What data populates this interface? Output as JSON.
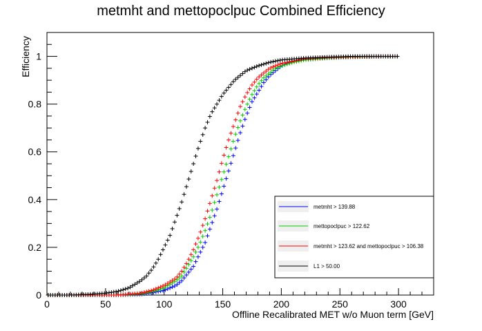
{
  "chart_data": {
    "type": "scatter",
    "title": "metmht and mettopoclpuc Combined Efficiency",
    "xlabel": "Offline Recalibrated MET w/o Muon term [GeV]",
    "ylabel": "Efficiency",
    "xlim": [
      0,
      330
    ],
    "ylim": [
      0,
      1.1
    ],
    "x_ticks": [
      0,
      50,
      100,
      150,
      200,
      250,
      300
    ],
    "y_ticks": [
      0,
      0.2,
      0.4,
      0.6,
      0.8,
      1
    ],
    "x_tick_labels": [
      "0",
      "50",
      "100",
      "150",
      "200",
      "250",
      "300"
    ],
    "y_tick_labels": [
      "0",
      "0.2",
      "0.4",
      "0.6",
      "0.8",
      "1"
    ],
    "grid": false,
    "legend_position": "bottom-right",
    "series": [
      {
        "name": "metmht >  139.88",
        "color": "#0000ff",
        "marker": "cross",
        "points": [
          [
            0,
            0
          ],
          [
            60,
            0
          ],
          [
            80,
            0.003
          ],
          [
            90,
            0.01
          ],
          [
            100,
            0.02
          ],
          [
            110,
            0.04
          ],
          [
            115,
            0.06
          ],
          [
            120,
            0.09
          ],
          [
            125,
            0.12
          ],
          [
            130,
            0.17
          ],
          [
            135,
            0.22
          ],
          [
            140,
            0.29
          ],
          [
            145,
            0.36
          ],
          [
            150,
            0.44
          ],
          [
            155,
            0.52
          ],
          [
            160,
            0.6
          ],
          [
            165,
            0.68
          ],
          [
            170,
            0.75
          ],
          [
            175,
            0.81
          ],
          [
            180,
            0.85
          ],
          [
            185,
            0.89
          ],
          [
            190,
            0.92
          ],
          [
            195,
            0.94
          ],
          [
            200,
            0.96
          ],
          [
            210,
            0.98
          ],
          [
            220,
            0.99
          ],
          [
            240,
            0.995
          ],
          [
            260,
            0.998
          ],
          [
            280,
            1.0
          ],
          [
            300,
            1.0
          ]
        ]
      },
      {
        "name": "mettopoclpuc >  122.62",
        "color": "#00cc00",
        "marker": "cross",
        "points": [
          [
            0,
            0
          ],
          [
            60,
            0
          ],
          [
            80,
            0.005
          ],
          [
            90,
            0.015
          ],
          [
            100,
            0.03
          ],
          [
            110,
            0.06
          ],
          [
            115,
            0.08
          ],
          [
            120,
            0.12
          ],
          [
            125,
            0.16
          ],
          [
            130,
            0.21
          ],
          [
            135,
            0.27
          ],
          [
            140,
            0.34
          ],
          [
            145,
            0.42
          ],
          [
            150,
            0.5
          ],
          [
            155,
            0.58
          ],
          [
            160,
            0.66
          ],
          [
            165,
            0.73
          ],
          [
            170,
            0.79
          ],
          [
            175,
            0.84
          ],
          [
            180,
            0.88
          ],
          [
            185,
            0.91
          ],
          [
            190,
            0.93
          ],
          [
            195,
            0.95
          ],
          [
            200,
            0.96
          ],
          [
            210,
            0.975
          ],
          [
            220,
            0.985
          ],
          [
            240,
            0.993
          ],
          [
            260,
            0.997
          ],
          [
            280,
            1.0
          ],
          [
            300,
            1.0
          ]
        ]
      },
      {
        "name": "metmht >  123.62 and mettopoclpuc >  106.38",
        "color": "#ff0000",
        "marker": "cross",
        "points": [
          [
            0,
            0
          ],
          [
            60,
            0
          ],
          [
            80,
            0.008
          ],
          [
            90,
            0.02
          ],
          [
            100,
            0.04
          ],
          [
            110,
            0.07
          ],
          [
            115,
            0.1
          ],
          [
            120,
            0.14
          ],
          [
            125,
            0.19
          ],
          [
            130,
            0.25
          ],
          [
            135,
            0.32
          ],
          [
            140,
            0.4
          ],
          [
            145,
            0.48
          ],
          [
            150,
            0.57
          ],
          [
            155,
            0.65
          ],
          [
            160,
            0.72
          ],
          [
            165,
            0.79
          ],
          [
            170,
            0.84
          ],
          [
            175,
            0.88
          ],
          [
            180,
            0.91
          ],
          [
            185,
            0.93
          ],
          [
            190,
            0.95
          ],
          [
            195,
            0.96
          ],
          [
            200,
            0.97
          ],
          [
            210,
            0.98
          ],
          [
            220,
            0.99
          ],
          [
            240,
            0.995
          ],
          [
            260,
            0.998
          ],
          [
            280,
            1.0
          ],
          [
            300,
            1.0
          ]
        ]
      },
      {
        "name": "L1 >  50.00",
        "color": "#000000",
        "marker": "cross",
        "points": [
          [
            0,
            0
          ],
          [
            10,
            0
          ],
          [
            20,
            0
          ],
          [
            30,
            0.002
          ],
          [
            40,
            0.004
          ],
          [
            50,
            0.008
          ],
          [
            60,
            0.015
          ],
          [
            70,
            0.03
          ],
          [
            80,
            0.06
          ],
          [
            85,
            0.08
          ],
          [
            90,
            0.11
          ],
          [
            95,
            0.15
          ],
          [
            100,
            0.2
          ],
          [
            105,
            0.25
          ],
          [
            110,
            0.32
          ],
          [
            115,
            0.39
          ],
          [
            120,
            0.47
          ],
          [
            125,
            0.55
          ],
          [
            130,
            0.63
          ],
          [
            135,
            0.7
          ],
          [
            140,
            0.76
          ],
          [
            145,
            0.8
          ],
          [
            150,
            0.84
          ],
          [
            155,
            0.87
          ],
          [
            160,
            0.9
          ],
          [
            165,
            0.92
          ],
          [
            170,
            0.94
          ],
          [
            180,
            0.96
          ],
          [
            190,
            0.975
          ],
          [
            200,
            0.985
          ],
          [
            220,
            0.993
          ],
          [
            240,
            0.997
          ],
          [
            260,
            1.0
          ],
          [
            280,
            1.0
          ],
          [
            300,
            1.0
          ]
        ]
      }
    ]
  }
}
